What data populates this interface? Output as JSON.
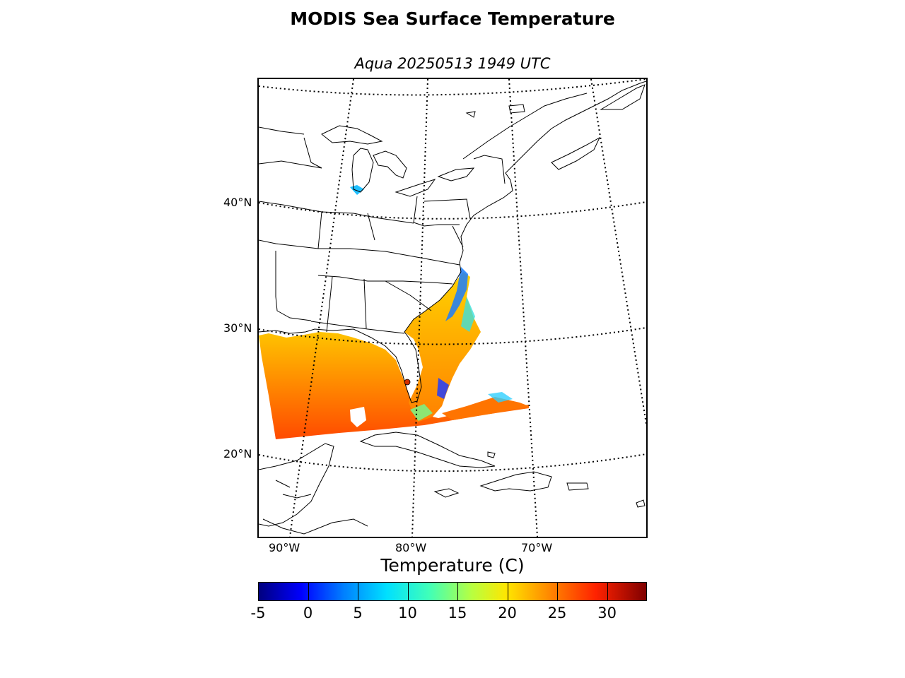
{
  "title": "MODIS Sea Surface Temperature",
  "subtitle": "Aqua 20250513 1949 UTC",
  "map": {
    "latitude_labels": [
      "40°N",
      "30°N",
      "20°N"
    ],
    "longitude_labels": [
      "90°W",
      "80°W",
      "70°W"
    ],
    "graticule": "dotted",
    "projection_style": "conic"
  },
  "colorbar": {
    "label": "Temperature (C)",
    "ticks": [
      "-5",
      "0",
      "5",
      "10",
      "15",
      "20",
      "25",
      "30"
    ],
    "range": [
      -5,
      34
    ],
    "colormap": "jet",
    "colors": {
      "cold": "#00007f",
      "mid": "#40ffb8",
      "warm": "#ff2200",
      "hot": "#7f0000"
    }
  }
}
